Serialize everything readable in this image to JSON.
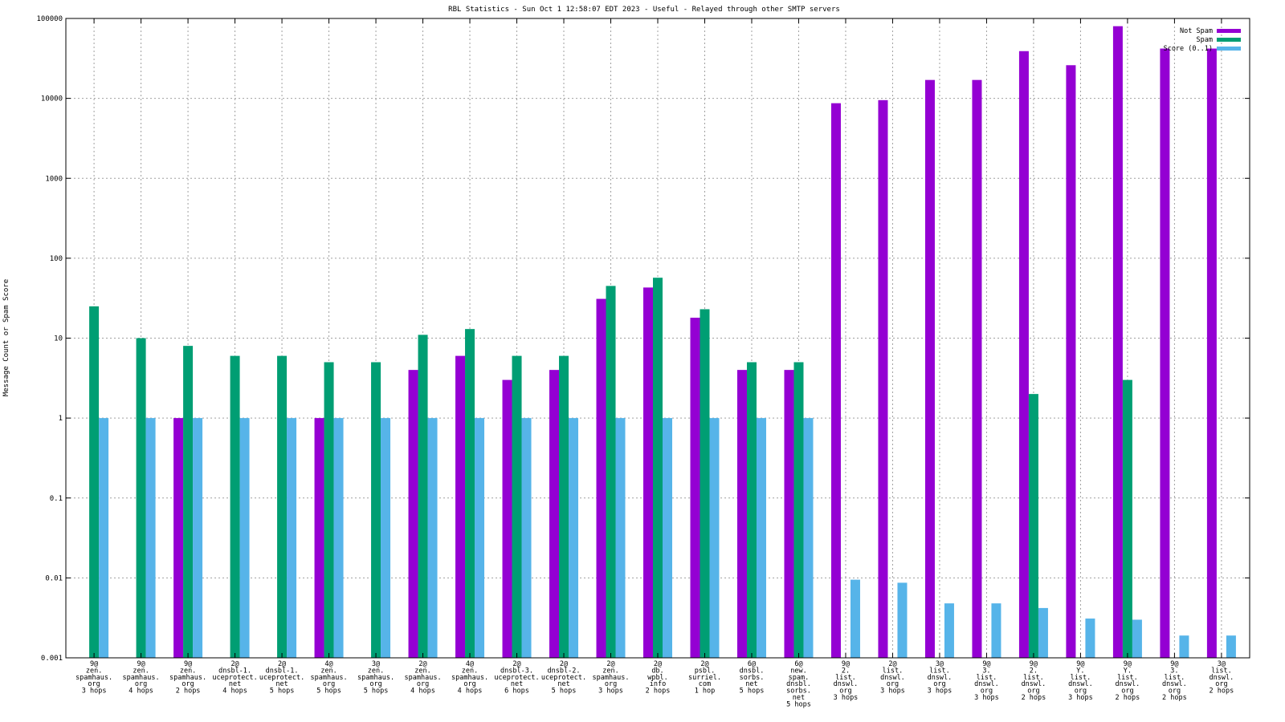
{
  "chart_data": {
    "type": "bar",
    "title": "RBL Statistics - Sun Oct  1 12:58:07 EDT 2023 - Useful - Relayed through other SMTP servers",
    "xlabel": "",
    "ylabel": "Message Count or Spam Score",
    "yscale": "log",
    "ylim": [
      0.001,
      100000
    ],
    "yticks": [
      "0.001",
      "0.01",
      "0.1",
      "1",
      "10",
      "100",
      "1000",
      "10000",
      "100000"
    ],
    "grid": true,
    "legend_position": "top-right",
    "categories": [
      [
        "9@",
        "zen.",
        "spamhaus.",
        "org",
        "3 hops"
      ],
      [
        "9@",
        "zen.",
        "spamhaus.",
        "org",
        "4 hops"
      ],
      [
        "9@",
        "zen.",
        "spamhaus.",
        "org",
        "2 hops"
      ],
      [
        "2@",
        "dnsbl-1.",
        "uceprotect.",
        "net",
        "4 hops"
      ],
      [
        "2@",
        "dnsbl-1.",
        "uceprotect.",
        "net",
        "5 hops"
      ],
      [
        "4@",
        "zen.",
        "spamhaus.",
        "org",
        "5 hops"
      ],
      [
        "3@",
        "zen.",
        "spamhaus.",
        "org",
        "5 hops"
      ],
      [
        "2@",
        "zen.",
        "spamhaus.",
        "org",
        "4 hops"
      ],
      [
        "4@",
        "zen.",
        "spamhaus.",
        "org",
        "4 hops"
      ],
      [
        "2@",
        "dnsbl-3.",
        "uceprotect.",
        "net",
        "6 hops"
      ],
      [
        "2@",
        "dnsbl-2.",
        "uceprotect.",
        "net",
        "5 hops"
      ],
      [
        "2@",
        "zen.",
        "spamhaus.",
        "org",
        "3 hops"
      ],
      [
        "2@",
        "db.",
        "wpbl.",
        "info",
        "2 hops"
      ],
      [
        "2@",
        "psbl.",
        "surriel.",
        "com",
        "1 hop"
      ],
      [
        "6@",
        "dnsbl.",
        "sorbs.",
        "net",
        "5 hops"
      ],
      [
        "6@",
        "new.",
        "spam.",
        "dnsbl.",
        "sorbs.",
        "net",
        "5 hops"
      ],
      [
        "9@",
        "2.",
        "list.",
        "dnswl.",
        "org",
        "3 hops"
      ],
      [
        "2@",
        "list.",
        "dnswl.",
        "org",
        "3 hops"
      ],
      [
        "3@",
        "list.",
        "dnswl.",
        "org",
        "3 hops"
      ],
      [
        "9@",
        "3.",
        "list.",
        "dnswl.",
        "org",
        "3 hops"
      ],
      [
        "9@",
        "2.",
        "list.",
        "dnswl.",
        "org",
        "2 hops"
      ],
      [
        "9@",
        "Y.",
        "list.",
        "dnswl.",
        "org",
        "3 hops"
      ],
      [
        "9@",
        "Y.",
        "list.",
        "dnswl.",
        "org",
        "2 hops"
      ],
      [
        "9@",
        "3.",
        "list.",
        "dnswl.",
        "org",
        "2 hops"
      ],
      [
        "3@",
        "list.",
        "dnswl.",
        "org",
        "2 hops"
      ]
    ],
    "series": [
      {
        "name": "Not Spam",
        "color": "#9400d3",
        "values": [
          0,
          0,
          1,
          0,
          0,
          1,
          0,
          4,
          6,
          3,
          4,
          31,
          43,
          18,
          4,
          4,
          8700,
          9500,
          17000,
          17000,
          39000,
          26000,
          80000,
          42000,
          42000
        ]
      },
      {
        "name": "Spam",
        "color": "#009e73",
        "values": [
          25,
          10,
          8,
          6,
          6,
          5,
          5,
          11,
          13,
          6,
          6,
          45,
          57,
          23,
          5,
          5,
          0,
          0,
          0,
          0,
          2,
          0,
          3,
          0,
          0
        ]
      },
      {
        "name": "Score (0..1)",
        "color": "#56b4e9",
        "values": [
          1,
          1,
          1,
          1,
          1,
          1,
          1,
          1,
          1,
          1,
          1,
          1,
          1,
          1,
          1,
          1,
          0.0095,
          0.0087,
          0.0048,
          0.0048,
          0.0042,
          0.0031,
          0.003,
          0.0019,
          0.0019
        ]
      }
    ]
  }
}
